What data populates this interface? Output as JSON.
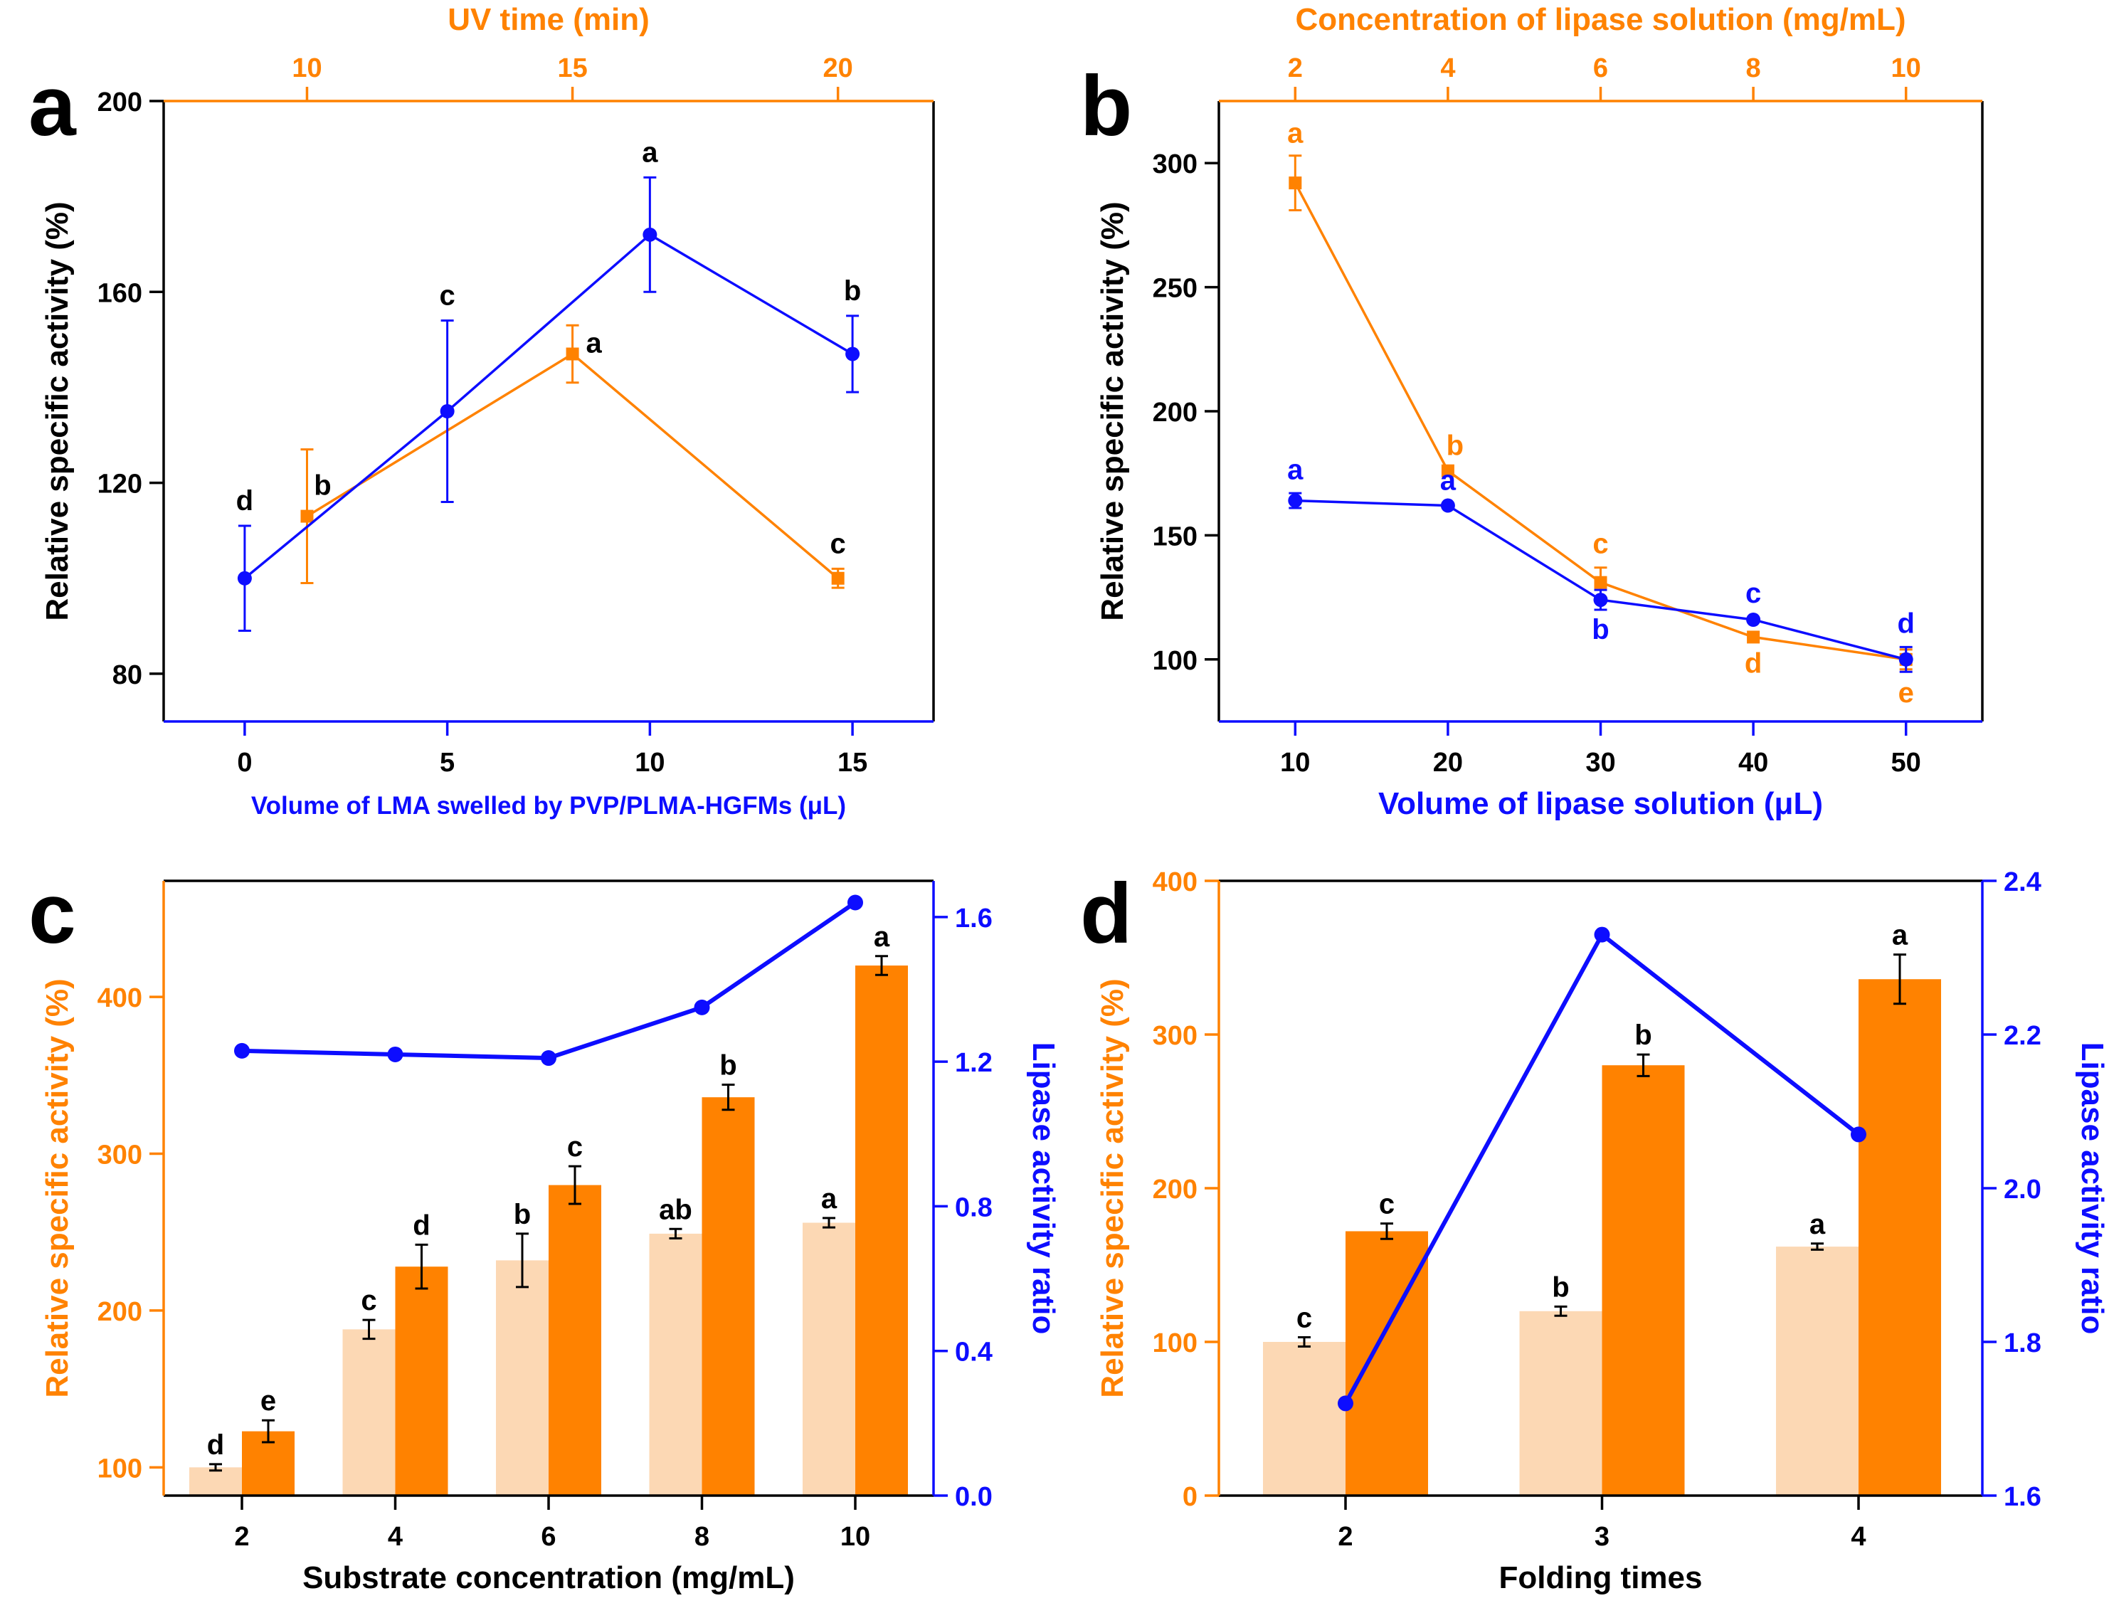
{
  "colors": {
    "orange": "#ff8200",
    "blue": "#0d0dff",
    "light_orange": "#fcd8b4",
    "black": "#000000"
  },
  "chart_data": [
    {
      "panel": "a",
      "type": "line",
      "ylabel": "Relative specific activity (%)",
      "ylim": [
        70,
        200
      ],
      "yticks": [
        80,
        120,
        160,
        200
      ],
      "x_bottom": {
        "label": "Volume of LMA swelled by PVP/PLMA-HGFMs (μL)",
        "lim": [
          -2,
          17
        ],
        "ticks": [
          0,
          5,
          10,
          15
        ]
      },
      "x_top": {
        "label": "UV time (min)",
        "lim": [
          7.3,
          21.8
        ],
        "ticks": [
          10,
          15,
          20
        ]
      },
      "series": [
        {
          "name": "UV time",
          "axis": "top",
          "color": "orange",
          "marker": "square",
          "x": [
            10,
            15,
            20
          ],
          "y": [
            113,
            147,
            100
          ],
          "err": [
            14,
            6,
            2
          ],
          "letters": [
            "b",
            "a",
            "c"
          ]
        },
        {
          "name": "Volume of LMA",
          "axis": "bottom",
          "color": "blue",
          "marker": "circle",
          "x": [
            0,
            5,
            10,
            15
          ],
          "y": [
            100,
            135,
            172,
            147
          ],
          "err": [
            11,
            19,
            12,
            8
          ],
          "letters": [
            "d",
            "c",
            "a",
            "b"
          ]
        }
      ]
    },
    {
      "panel": "b",
      "type": "line",
      "ylabel": "Relative specific activity (%)",
      "ylim": [
        75,
        325
      ],
      "yticks": [
        100,
        150,
        200,
        250,
        300
      ],
      "x_bottom": {
        "label": "Volume of lipase solution (μL)",
        "lim": [
          5,
          55
        ],
        "ticks": [
          10,
          20,
          30,
          40,
          50
        ]
      },
      "x_top": {
        "label": "Concentration of lipase solution (mg/mL)",
        "lim": [
          1,
          11
        ],
        "ticks": [
          2,
          4,
          6,
          8,
          10
        ]
      },
      "series": [
        {
          "name": "Concentration",
          "axis": "top",
          "color": "orange",
          "marker": "square",
          "x": [
            2,
            4,
            6,
            8,
            10
          ],
          "y": [
            292,
            176,
            131,
            109,
            100
          ],
          "err": [
            11,
            0,
            6,
            0,
            4
          ],
          "letters": [
            "a",
            "b",
            "c",
            "d",
            "e"
          ]
        },
        {
          "name": "Volume",
          "axis": "bottom",
          "color": "blue",
          "marker": "circle",
          "x": [
            10,
            20,
            30,
            40,
            50
          ],
          "y": [
            164,
            162,
            124,
            116,
            100
          ],
          "err": [
            3,
            0,
            4,
            0,
            5
          ],
          "letters": [
            "a",
            "a",
            "b",
            "c",
            "d"
          ]
        }
      ]
    },
    {
      "panel": "c",
      "type": "bar",
      "xlabel": "Substrate concentration (mg/mL)",
      "categories": [
        "2",
        "4",
        "6",
        "8",
        "10"
      ],
      "ylabel_left": "Relative specific activity (%)",
      "ylim_left": [
        82,
        474
      ],
      "yticks_left": [
        100,
        200,
        300,
        400
      ],
      "ylabel_right": "Lipase activity ratio",
      "ylim_right": [
        0,
        1.7
      ],
      "yticks_right": [
        "0.0",
        "0.4",
        "0.8",
        "1.2",
        "1.6"
      ],
      "bars": [
        {
          "name": "light",
          "color": "light_orange",
          "values": [
            100,
            188,
            232,
            249,
            256
          ],
          "err": [
            2,
            6,
            17,
            3,
            3
          ],
          "letters": [
            "d",
            "c",
            "b",
            "ab",
            "a"
          ]
        },
        {
          "name": "dark",
          "color": "orange",
          "values": [
            123,
            228,
            280,
            336,
            420
          ],
          "err": [
            7,
            14,
            12,
            8,
            6
          ],
          "letters": [
            "e",
            "d",
            "c",
            "b",
            "a"
          ]
        }
      ],
      "line": {
        "name": "Lipase activity ratio",
        "color": "blue",
        "values": [
          1.23,
          1.22,
          1.21,
          1.35,
          1.64
        ]
      }
    },
    {
      "panel": "d",
      "type": "bar",
      "xlabel": "Folding times",
      "categories": [
        "2",
        "3",
        "4"
      ],
      "ylabel_left": "Relative specific activity (%)",
      "ylim_left": [
        0,
        400
      ],
      "yticks_left": [
        0,
        100,
        200,
        300,
        400
      ],
      "ylabel_right": "Lipase activity ratio",
      "ylim_right": [
        1.6,
        2.4
      ],
      "yticks_right": [
        "1.6",
        "1.8",
        "2.0",
        "2.2",
        "2.4"
      ],
      "bars": [
        {
          "name": "light",
          "color": "light_orange",
          "values": [
            100,
            120,
            162
          ],
          "err": [
            3,
            3,
            2
          ],
          "letters": [
            "c",
            "b",
            "a"
          ]
        },
        {
          "name": "dark",
          "color": "orange",
          "values": [
            172,
            280,
            336
          ],
          "err": [
            5,
            7,
            16
          ],
          "letters": [
            "c",
            "b",
            "a"
          ]
        }
      ],
      "line": {
        "name": "Lipase activity ratio",
        "color": "blue",
        "values": [
          1.72,
          2.33,
          2.07
        ]
      }
    }
  ]
}
